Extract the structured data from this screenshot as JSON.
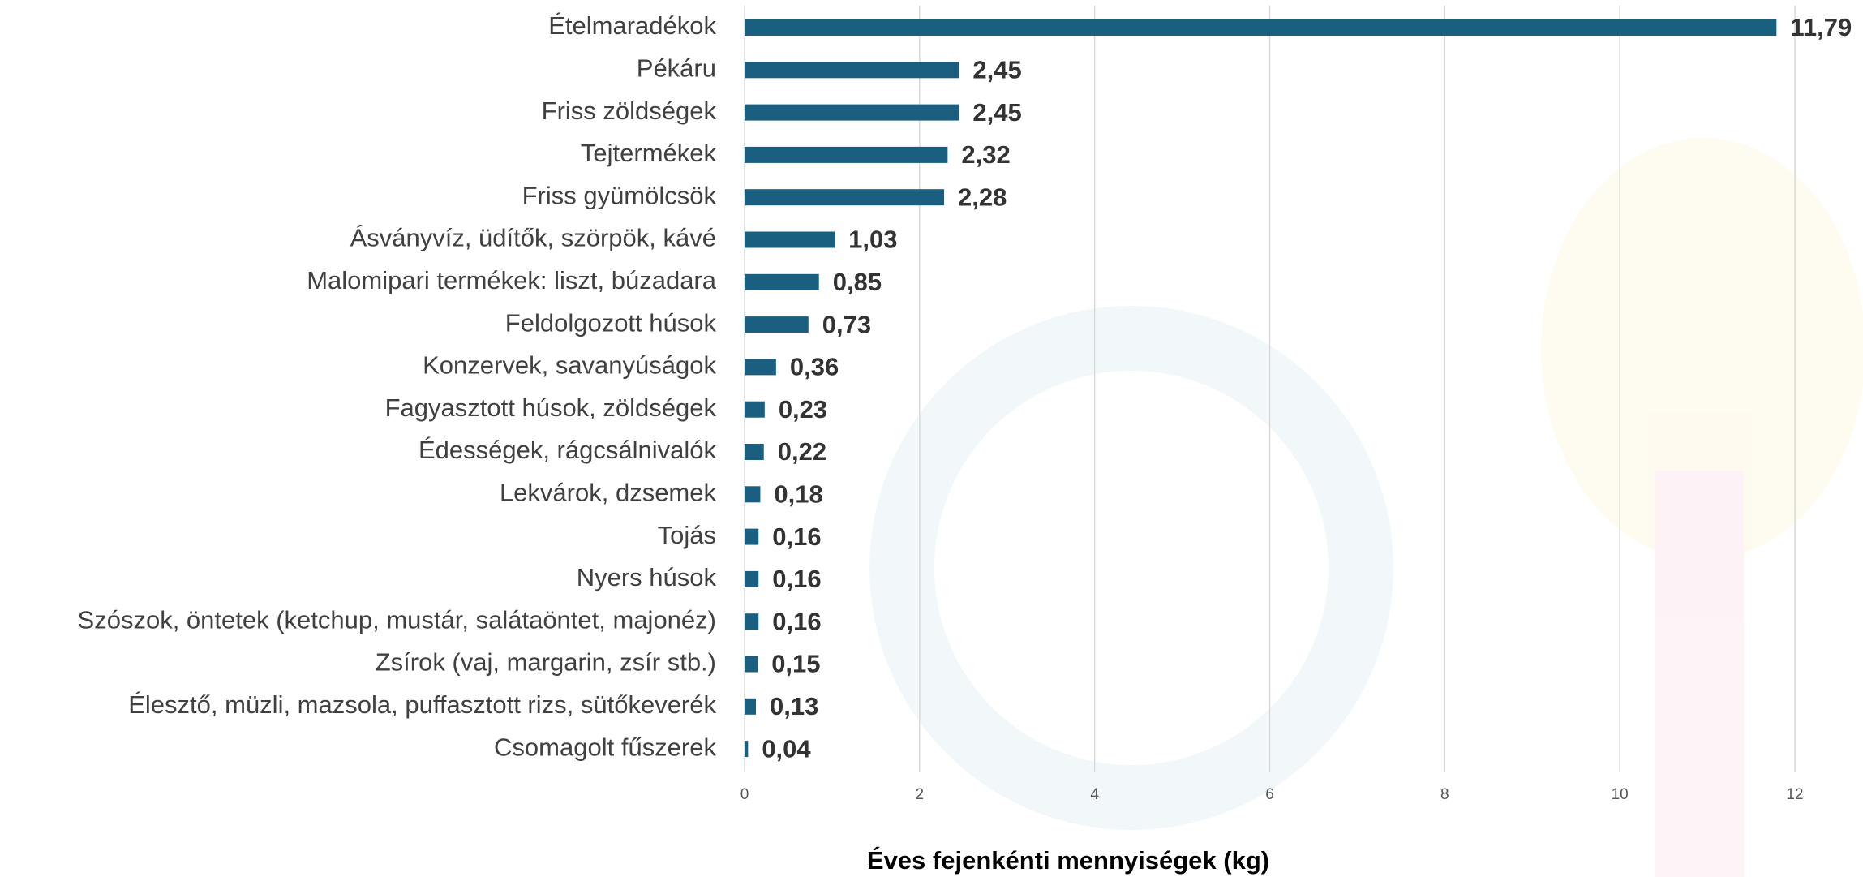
{
  "chart_data": {
    "type": "bar",
    "orientation": "horizontal",
    "x_label": "Éves fejenkénti mennyiségek (kg)",
    "categories": [
      "Ételmaradékok",
      "Pékáru",
      "Friss zöldségek",
      "Tejtermékek",
      "Friss gyümölcsök",
      "Ásványvíz, üdítők, szörpök, kávé",
      "Malomipari termékek: liszt, búzadara",
      "Feldolgozott húsok",
      "Konzervek, savanyúságok",
      "Fagyasztott húsok, zöldségek",
      "Édességek, rágcsálnivalók",
      "Lekvárok, dzsemek",
      "Tojás",
      "Nyers húsok",
      "Szószok, öntetek (ketchup, mustár, salátaöntet, majonéz)",
      "Zsírok (vaj, margarin, zsír stb.)",
      "Élesztő, müzli, mazsola, puffasztott rizs, sütőkeverék",
      "Csomagolt fűszerek"
    ],
    "values": [
      11.79,
      2.45,
      2.45,
      2.32,
      2.28,
      1.03,
      0.85,
      0.73,
      0.36,
      0.23,
      0.22,
      0.18,
      0.16,
      0.16,
      0.16,
      0.15,
      0.13,
      0.04
    ],
    "value_labels": [
      "11,79",
      "2,45",
      "2,45",
      "2,32",
      "2,28",
      "1,03",
      "0,85",
      "0,73",
      "0,36",
      "0,23",
      "0,22",
      "0,18",
      "0,16",
      "0,16",
      "0,16",
      "0,15",
      "0,13",
      "0,04"
    ],
    "color": "#1a5f80",
    "xlim": [
      0,
      12
    ],
    "xticks": [
      0,
      2,
      4,
      6,
      8,
      10,
      12
    ],
    "grid": true
  }
}
